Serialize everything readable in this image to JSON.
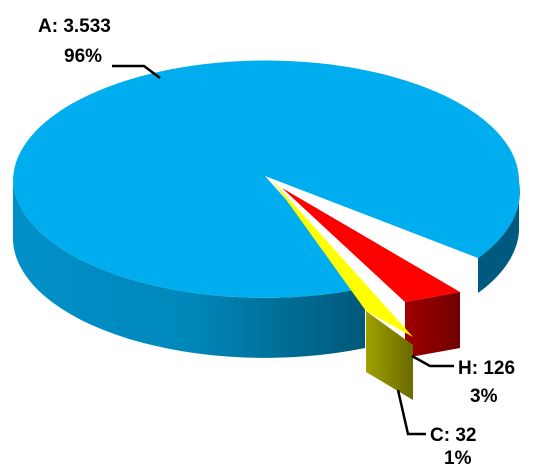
{
  "chart_data": {
    "type": "pie",
    "three_d": true,
    "legend": "none",
    "slices": [
      {
        "name": "A",
        "value": 3533,
        "value_label": "3.533",
        "percent_label": "96%",
        "color": "#00aeef"
      },
      {
        "name": "H",
        "value": 126,
        "value_label": "126",
        "percent_label": "3%",
        "color": "#ff0000"
      },
      {
        "name": "C",
        "value": 32,
        "value_label": "32",
        "percent_label": "1%",
        "color": "#ffff00"
      }
    ]
  }
}
